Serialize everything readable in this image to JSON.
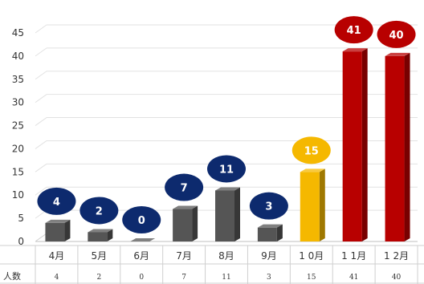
{
  "chart_data": {
    "type": "bar",
    "categories": [
      "4月",
      "5月",
      "6月",
      "7月",
      "8月",
      "9月",
      "1 0月",
      "1 1月",
      "1 2月"
    ],
    "values": [
      4,
      2,
      0,
      7,
      11,
      3,
      15,
      41,
      40
    ],
    "value_labels": [
      "4",
      "2",
      "0",
      "7",
      "11",
      "3",
      "15",
      "41",
      "40"
    ],
    "table_row_header": "人数",
    "ylim": [
      0,
      45
    ],
    "yticks": [
      0,
      5,
      10,
      15,
      20,
      25,
      30,
      35,
      40,
      45
    ],
    "ytick_labels": [
      "0",
      "5",
      "10",
      "15",
      "20",
      "25",
      "30",
      "35",
      "40",
      "45"
    ],
    "grid": true,
    "legend": "none",
    "bar_colors": [
      "#555555",
      "#555555",
      "#555555",
      "#555555",
      "#555555",
      "#555555",
      "#f5b800",
      "#b80000",
      "#b80000"
    ],
    "bubble_colors": [
      "#0d2a6e",
      "#0d2a6e",
      "#0d2a6e",
      "#0d2a6e",
      "#0d2a6e",
      "#0d2a6e",
      "#f5b800",
      "#b80000",
      "#b80000"
    ]
  }
}
